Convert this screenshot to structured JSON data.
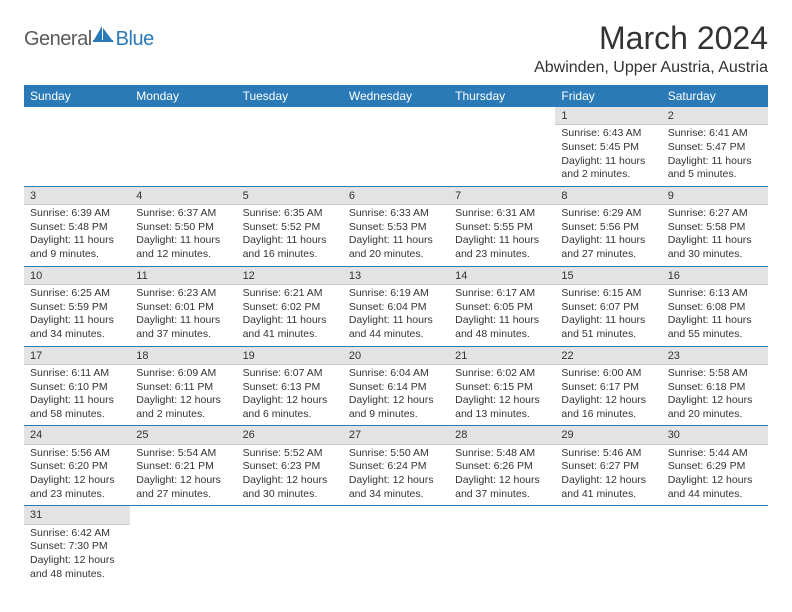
{
  "brand": {
    "part1": "General",
    "part2": "Blue"
  },
  "title": "March 2024",
  "location": "Abwinden, Upper Austria, Austria",
  "colors": {
    "header_bg": "#2a7ab8",
    "header_fg": "#ffffff",
    "daynum_bg": "#e3e3e3"
  },
  "columns": [
    "Sunday",
    "Monday",
    "Tuesday",
    "Wednesday",
    "Thursday",
    "Friday",
    "Saturday"
  ],
  "weeks": [
    [
      null,
      null,
      null,
      null,
      null,
      {
        "d": "1",
        "sr": "Sunrise: 6:43 AM",
        "ss": "Sunset: 5:45 PM",
        "dl1": "Daylight: 11 hours",
        "dl2": "and 2 minutes."
      },
      {
        "d": "2",
        "sr": "Sunrise: 6:41 AM",
        "ss": "Sunset: 5:47 PM",
        "dl1": "Daylight: 11 hours",
        "dl2": "and 5 minutes."
      }
    ],
    [
      {
        "d": "3",
        "sr": "Sunrise: 6:39 AM",
        "ss": "Sunset: 5:48 PM",
        "dl1": "Daylight: 11 hours",
        "dl2": "and 9 minutes."
      },
      {
        "d": "4",
        "sr": "Sunrise: 6:37 AM",
        "ss": "Sunset: 5:50 PM",
        "dl1": "Daylight: 11 hours",
        "dl2": "and 12 minutes."
      },
      {
        "d": "5",
        "sr": "Sunrise: 6:35 AM",
        "ss": "Sunset: 5:52 PM",
        "dl1": "Daylight: 11 hours",
        "dl2": "and 16 minutes."
      },
      {
        "d": "6",
        "sr": "Sunrise: 6:33 AM",
        "ss": "Sunset: 5:53 PM",
        "dl1": "Daylight: 11 hours",
        "dl2": "and 20 minutes."
      },
      {
        "d": "7",
        "sr": "Sunrise: 6:31 AM",
        "ss": "Sunset: 5:55 PM",
        "dl1": "Daylight: 11 hours",
        "dl2": "and 23 minutes."
      },
      {
        "d": "8",
        "sr": "Sunrise: 6:29 AM",
        "ss": "Sunset: 5:56 PM",
        "dl1": "Daylight: 11 hours",
        "dl2": "and 27 minutes."
      },
      {
        "d": "9",
        "sr": "Sunrise: 6:27 AM",
        "ss": "Sunset: 5:58 PM",
        "dl1": "Daylight: 11 hours",
        "dl2": "and 30 minutes."
      }
    ],
    [
      {
        "d": "10",
        "sr": "Sunrise: 6:25 AM",
        "ss": "Sunset: 5:59 PM",
        "dl1": "Daylight: 11 hours",
        "dl2": "and 34 minutes."
      },
      {
        "d": "11",
        "sr": "Sunrise: 6:23 AM",
        "ss": "Sunset: 6:01 PM",
        "dl1": "Daylight: 11 hours",
        "dl2": "and 37 minutes."
      },
      {
        "d": "12",
        "sr": "Sunrise: 6:21 AM",
        "ss": "Sunset: 6:02 PM",
        "dl1": "Daylight: 11 hours",
        "dl2": "and 41 minutes."
      },
      {
        "d": "13",
        "sr": "Sunrise: 6:19 AM",
        "ss": "Sunset: 6:04 PM",
        "dl1": "Daylight: 11 hours",
        "dl2": "and 44 minutes."
      },
      {
        "d": "14",
        "sr": "Sunrise: 6:17 AM",
        "ss": "Sunset: 6:05 PM",
        "dl1": "Daylight: 11 hours",
        "dl2": "and 48 minutes."
      },
      {
        "d": "15",
        "sr": "Sunrise: 6:15 AM",
        "ss": "Sunset: 6:07 PM",
        "dl1": "Daylight: 11 hours",
        "dl2": "and 51 minutes."
      },
      {
        "d": "16",
        "sr": "Sunrise: 6:13 AM",
        "ss": "Sunset: 6:08 PM",
        "dl1": "Daylight: 11 hours",
        "dl2": "and 55 minutes."
      }
    ],
    [
      {
        "d": "17",
        "sr": "Sunrise: 6:11 AM",
        "ss": "Sunset: 6:10 PM",
        "dl1": "Daylight: 11 hours",
        "dl2": "and 58 minutes."
      },
      {
        "d": "18",
        "sr": "Sunrise: 6:09 AM",
        "ss": "Sunset: 6:11 PM",
        "dl1": "Daylight: 12 hours",
        "dl2": "and 2 minutes."
      },
      {
        "d": "19",
        "sr": "Sunrise: 6:07 AM",
        "ss": "Sunset: 6:13 PM",
        "dl1": "Daylight: 12 hours",
        "dl2": "and 6 minutes."
      },
      {
        "d": "20",
        "sr": "Sunrise: 6:04 AM",
        "ss": "Sunset: 6:14 PM",
        "dl1": "Daylight: 12 hours",
        "dl2": "and 9 minutes."
      },
      {
        "d": "21",
        "sr": "Sunrise: 6:02 AM",
        "ss": "Sunset: 6:15 PM",
        "dl1": "Daylight: 12 hours",
        "dl2": "and 13 minutes."
      },
      {
        "d": "22",
        "sr": "Sunrise: 6:00 AM",
        "ss": "Sunset: 6:17 PM",
        "dl1": "Daylight: 12 hours",
        "dl2": "and 16 minutes."
      },
      {
        "d": "23",
        "sr": "Sunrise: 5:58 AM",
        "ss": "Sunset: 6:18 PM",
        "dl1": "Daylight: 12 hours",
        "dl2": "and 20 minutes."
      }
    ],
    [
      {
        "d": "24",
        "sr": "Sunrise: 5:56 AM",
        "ss": "Sunset: 6:20 PM",
        "dl1": "Daylight: 12 hours",
        "dl2": "and 23 minutes."
      },
      {
        "d": "25",
        "sr": "Sunrise: 5:54 AM",
        "ss": "Sunset: 6:21 PM",
        "dl1": "Daylight: 12 hours",
        "dl2": "and 27 minutes."
      },
      {
        "d": "26",
        "sr": "Sunrise: 5:52 AM",
        "ss": "Sunset: 6:23 PM",
        "dl1": "Daylight: 12 hours",
        "dl2": "and 30 minutes."
      },
      {
        "d": "27",
        "sr": "Sunrise: 5:50 AM",
        "ss": "Sunset: 6:24 PM",
        "dl1": "Daylight: 12 hours",
        "dl2": "and 34 minutes."
      },
      {
        "d": "28",
        "sr": "Sunrise: 5:48 AM",
        "ss": "Sunset: 6:26 PM",
        "dl1": "Daylight: 12 hours",
        "dl2": "and 37 minutes."
      },
      {
        "d": "29",
        "sr": "Sunrise: 5:46 AM",
        "ss": "Sunset: 6:27 PM",
        "dl1": "Daylight: 12 hours",
        "dl2": "and 41 minutes."
      },
      {
        "d": "30",
        "sr": "Sunrise: 5:44 AM",
        "ss": "Sunset: 6:29 PM",
        "dl1": "Daylight: 12 hours",
        "dl2": "and 44 minutes."
      }
    ],
    [
      {
        "d": "31",
        "sr": "Sunrise: 6:42 AM",
        "ss": "Sunset: 7:30 PM",
        "dl1": "Daylight: 12 hours",
        "dl2": "and 48 minutes."
      },
      null,
      null,
      null,
      null,
      null,
      null
    ]
  ]
}
